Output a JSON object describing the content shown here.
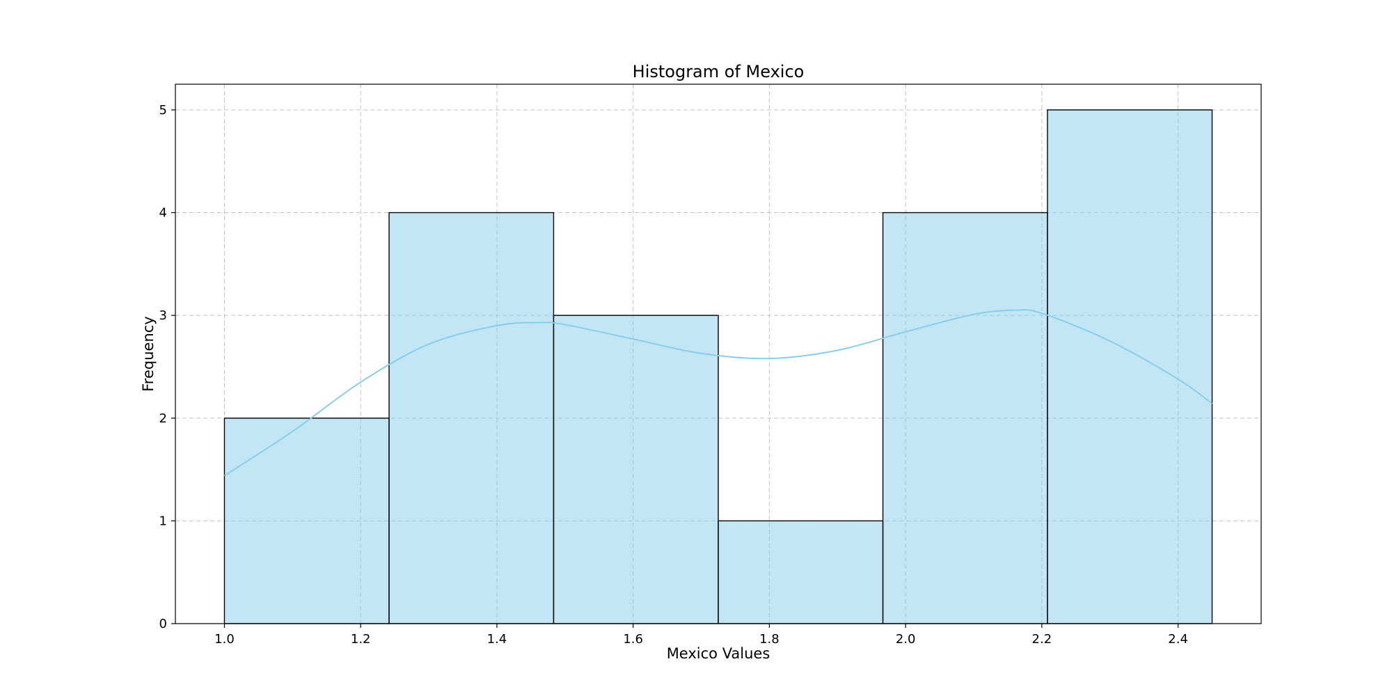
{
  "chart_data": {
    "type": "bar",
    "title": "Histogram of Mexico",
    "xlabel": "Mexico Values",
    "ylabel": "Frequency",
    "bin_edges": [
      1.0,
      1.2417,
      1.4833,
      1.725,
      1.9667,
      2.2083,
      2.45
    ],
    "values": [
      2,
      4,
      3,
      1,
      4,
      5
    ],
    "xlim": [
      0.928,
      2.522
    ],
    "ylim": [
      0,
      5.25
    ],
    "xticks": [
      1.0,
      1.2,
      1.4,
      1.6,
      1.8,
      2.0,
      2.2,
      2.4
    ],
    "xtick_labels": [
      "1.0",
      "1.2",
      "1.4",
      "1.6",
      "1.8",
      "2.0",
      "2.2",
      "2.4"
    ],
    "yticks": [
      0,
      1,
      2,
      3,
      4,
      5
    ],
    "ytick_labels": [
      "0",
      "1",
      "2",
      "3",
      "4",
      "5"
    ],
    "grid": true,
    "bar_color": "#87ceeb",
    "kde_color": "#87ceeb",
    "kde": {
      "x": [
        1.0,
        1.1,
        1.2,
        1.3,
        1.4,
        1.46,
        1.5,
        1.6,
        1.7,
        1.8,
        1.9,
        2.0,
        2.1,
        2.16,
        2.2,
        2.3,
        2.4,
        2.45
      ],
      "y": [
        1.44,
        1.87,
        2.35,
        2.72,
        2.9,
        2.93,
        2.91,
        2.77,
        2.63,
        2.58,
        2.66,
        2.84,
        3.01,
        3.05,
        3.02,
        2.75,
        2.38,
        2.14
      ]
    }
  }
}
